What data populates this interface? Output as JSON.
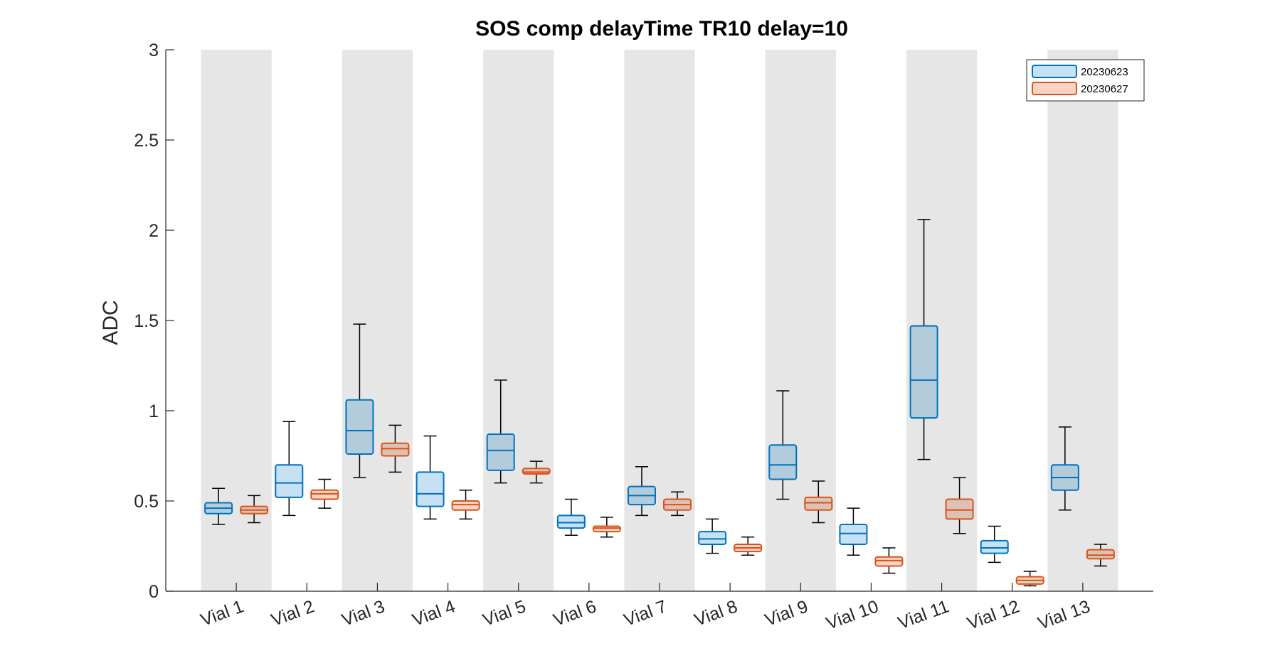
{
  "chart_data": {
    "type": "box",
    "title": "SOS comp delayTime TR10 delay=10",
    "xlabel": "",
    "ylabel": "ADC",
    "ylim": [
      0,
      3
    ],
    "yticks": [
      "0",
      "0.5",
      "1",
      "1.5",
      "2",
      "2.5",
      "3"
    ],
    "categories": [
      "Vial 1",
      "Vial 2",
      "Vial 3",
      "Vial 4",
      "Vial 5",
      "Vial 6",
      "Vial 7",
      "Vial 8",
      "Vial 9",
      "Vial 10",
      "Vial 11",
      "Vial 12",
      "Vial 13"
    ],
    "shaded_categories": [
      1,
      3,
      5,
      7,
      9,
      11,
      13
    ],
    "legend_position": "top-right",
    "series": [
      {
        "name": "20230623",
        "color": "#0072BD",
        "fill": "#C5E1F3",
        "fill_on_shade": "#B3CCDB",
        "stats": [
          {
            "whisker_low": 0.37,
            "q1": 0.43,
            "median": 0.46,
            "q3": 0.49,
            "whisker_high": 0.57
          },
          {
            "whisker_low": 0.42,
            "q1": 0.52,
            "median": 0.6,
            "q3": 0.7,
            "whisker_high": 0.94
          },
          {
            "whisker_low": 0.63,
            "q1": 0.76,
            "median": 0.89,
            "q3": 1.06,
            "whisker_high": 1.48
          },
          {
            "whisker_low": 0.4,
            "q1": 0.47,
            "median": 0.54,
            "q3": 0.66,
            "whisker_high": 0.86
          },
          {
            "whisker_low": 0.6,
            "q1": 0.67,
            "median": 0.78,
            "q3": 0.87,
            "whisker_high": 1.17
          },
          {
            "whisker_low": 0.31,
            "q1": 0.35,
            "median": 0.38,
            "q3": 0.42,
            "whisker_high": 0.51
          },
          {
            "whisker_low": 0.42,
            "q1": 0.48,
            "median": 0.53,
            "q3": 0.58,
            "whisker_high": 0.69
          },
          {
            "whisker_low": 0.21,
            "q1": 0.26,
            "median": 0.29,
            "q3": 0.33,
            "whisker_high": 0.4
          },
          {
            "whisker_low": 0.51,
            "q1": 0.62,
            "median": 0.7,
            "q3": 0.81,
            "whisker_high": 1.11
          },
          {
            "whisker_low": 0.2,
            "q1": 0.26,
            "median": 0.32,
            "q3": 0.37,
            "whisker_high": 0.46
          },
          {
            "whisker_low": 0.73,
            "q1": 0.96,
            "median": 1.17,
            "q3": 1.47,
            "whisker_high": 2.06
          },
          {
            "whisker_low": 0.16,
            "q1": 0.21,
            "median": 0.24,
            "q3": 0.28,
            "whisker_high": 0.36
          },
          {
            "whisker_low": 0.45,
            "q1": 0.56,
            "median": 0.63,
            "q3": 0.7,
            "whisker_high": 0.91
          }
        ]
      },
      {
        "name": "20230627",
        "color": "#D95319",
        "fill": "#F7D4C5",
        "fill_on_shade": "#DCC1B5",
        "stats": [
          {
            "whisker_low": 0.38,
            "q1": 0.43,
            "median": 0.45,
            "q3": 0.47,
            "whisker_high": 0.53
          },
          {
            "whisker_low": 0.46,
            "q1": 0.51,
            "median": 0.54,
            "q3": 0.56,
            "whisker_high": 0.62
          },
          {
            "whisker_low": 0.66,
            "q1": 0.75,
            "median": 0.79,
            "q3": 0.82,
            "whisker_high": 0.92
          },
          {
            "whisker_low": 0.4,
            "q1": 0.45,
            "median": 0.48,
            "q3": 0.5,
            "whisker_high": 0.56
          },
          {
            "whisker_low": 0.6,
            "q1": 0.65,
            "median": 0.66,
            "q3": 0.68,
            "whisker_high": 0.72
          },
          {
            "whisker_low": 0.3,
            "q1": 0.33,
            "median": 0.35,
            "q3": 0.36,
            "whisker_high": 0.41
          },
          {
            "whisker_low": 0.42,
            "q1": 0.45,
            "median": 0.48,
            "q3": 0.51,
            "whisker_high": 0.55
          },
          {
            "whisker_low": 0.2,
            "q1": 0.22,
            "median": 0.24,
            "q3": 0.26,
            "whisker_high": 0.3
          },
          {
            "whisker_low": 0.38,
            "q1": 0.45,
            "median": 0.49,
            "q3": 0.52,
            "whisker_high": 0.61
          },
          {
            "whisker_low": 0.1,
            "q1": 0.14,
            "median": 0.17,
            "q3": 0.19,
            "whisker_high": 0.24
          },
          {
            "whisker_low": 0.32,
            "q1": 0.4,
            "median": 0.45,
            "q3": 0.51,
            "whisker_high": 0.63
          },
          {
            "whisker_low": 0.03,
            "q1": 0.04,
            "median": 0.06,
            "q3": 0.08,
            "whisker_high": 0.11
          },
          {
            "whisker_low": 0.14,
            "q1": 0.18,
            "median": 0.2,
            "q3": 0.23,
            "whisker_high": 0.26
          }
        ]
      }
    ]
  }
}
